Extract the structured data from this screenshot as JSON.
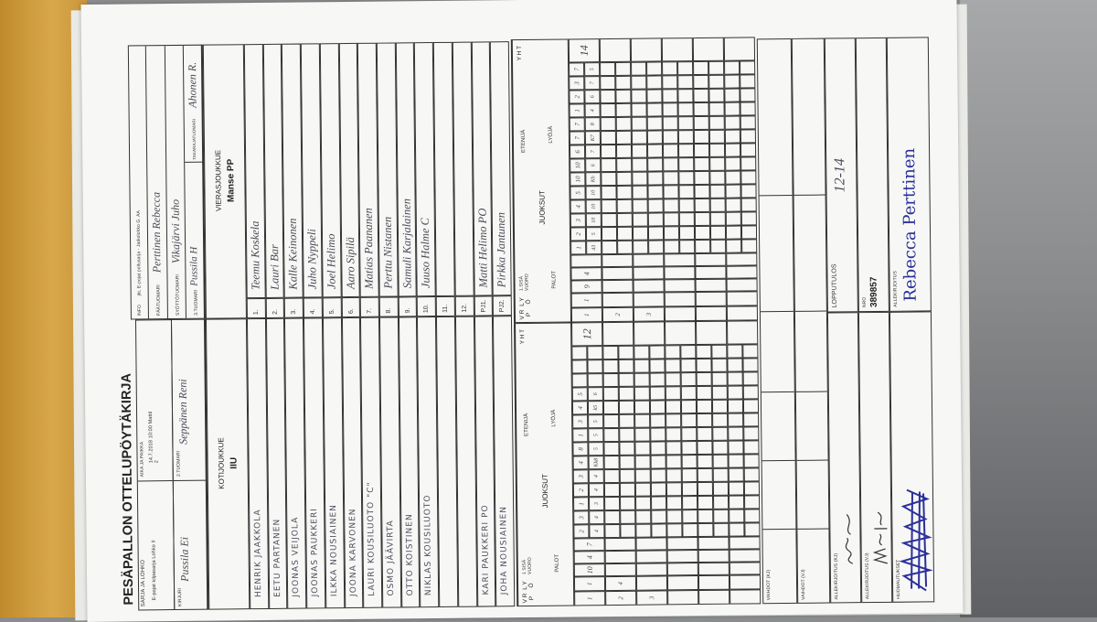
{
  "form": {
    "title": "PESÄPALLON OTTELUPÖYTÄKIRJA",
    "header": {
      "series_label": "SARJA JA LOHKO",
      "series_value": "E-pojat kilpasarja Lohko II",
      "time_place_label": "AIKA JA PAIKKA",
      "time_place_value": "14.7.2018 10:00 Mattil 2",
      "scorer_label": "KIRJURI",
      "scorer_value": "Pussila Ei",
      "umpire2_label": "2.TUOMARI",
      "umpire2_value": "Seppänen Reni",
      "info_label": "INFO",
      "info_value": "jkt, E-pojat pollusarja - Jatkolohko G. AA",
      "head_umpire_label": "PÄÄTUOMARI",
      "head_umpire_value": "Perttinen Rebecca",
      "pitch_umpire_label": "SYÖTTÖTUOMARI",
      "pitch_umpire_value": "Vikajärvi Juho",
      "umpire3_label": "3.TUOMARI",
      "umpire3_value": "Pussila H",
      "back_umpire_label": "TAKARAJATUOMARI",
      "back_umpire_value": "Ahonen R."
    },
    "home": {
      "label": "KOTIJOUKKUE",
      "name": "IIU",
      "players": [
        "HENRIK JAAKKOLA",
        "EETU PARTANEN",
        "JOONAS VEIJOLA",
        "JOONAS PAUKKERI",
        "ILKKA NOUSIAINEN",
        "JOONA KARVONEN",
        "LAURI KOUSILUOTO \"C\"",
        "OSMO JÄÄVIRTA",
        "OTTO KOISTINEN",
        "NIKLAS KOUSILUOTO",
        "",
        "",
        "KARI PAUKKERI PO",
        "JOHA NOUSIAINEN"
      ]
    },
    "away": {
      "label": "VIERASJOUKKUE",
      "name": "Manse PP",
      "players": [
        "Teemu Koskela",
        "Lauri Bar",
        "Kalle Keinonen",
        "Juho Nyppeli",
        "Joel Helimo",
        "Aaro Sipilä",
        "Matias Paananen",
        "Perttu Nistanen",
        "Samuli Karjalainen",
        "Juuso Halme C",
        "",
        "",
        "Matti Helimo PO",
        "Pirkka Jantunen"
      ]
    },
    "row_numbers": [
      "1.",
      "2.",
      "3.",
      "4.",
      "5.",
      "6.",
      "7.",
      "8.",
      "9.",
      "10.",
      "11.",
      "12.",
      "PJ1.",
      "PJ2."
    ],
    "score_header": {
      "vrp": "V R P",
      "lyo": "L Y Ö",
      "home_inning": "1 SISÄ VUORO",
      "away_inning": "1.SISÄ VUORO",
      "palot": "PALOT",
      "juoksut": "JUOKSUT",
      "etenija": "ETENIJÄ",
      "lyoja": "LYÖJÄ",
      "yht": "Y H T"
    },
    "home_innings": [
      {
        "no": "1",
        "lyo": "1",
        "palot": [
          "10",
          "4",
          "7"
        ],
        "etenija": [
          "2",
          "3",
          "1",
          "2",
          "3",
          "4",
          "8",
          "1",
          "3",
          "4",
          "5"
        ],
        "lyoja": [
          "4",
          "4",
          "3",
          "4",
          "4",
          "Kk8",
          "5",
          "5",
          "5",
          "k5",
          "6"
        ],
        "total": "12"
      },
      {
        "no": "2",
        "lyo": "4",
        "palot": [],
        "etenija": [],
        "lyoja": [],
        "total": ""
      },
      {
        "no": "3",
        "lyo": "",
        "palot": [],
        "etenija": [],
        "lyoja": [],
        "total": ""
      }
    ],
    "away_innings": [
      {
        "no": "1",
        "lyo": "1",
        "palot": [
          "9",
          "4"
        ],
        "etenija": [
          "1",
          "2",
          "3",
          "4",
          "5",
          "10",
          "10",
          "6",
          "7",
          "7",
          "1",
          "2",
          "3",
          "7"
        ],
        "lyoja": [
          "43",
          "5",
          "10",
          "10",
          "10",
          "Kh",
          "6",
          "7",
          "K7",
          "8",
          "4",
          "6",
          "7",
          "5"
        ],
        "total": "14"
      },
      {
        "no": "2",
        "lyo": "",
        "palot": [],
        "etenija": [],
        "lyoja": [],
        "total": ""
      },
      {
        "no": "3",
        "lyo": "",
        "palot": [],
        "etenija": [],
        "lyoja": [],
        "total": ""
      }
    ],
    "footer": {
      "subs_home_label": "VAIHDOT (KJ)",
      "subs_away_label": "VAIHDOT (VJ)",
      "sign_home_label": "ALLEKIRJOITUS (KJ)",
      "sign_away_label": "ALLEKIRJOITUS (VJ)",
      "remarks_label": "HUOMAUTUKSET",
      "result_label": "LOPPUTULOS",
      "result_value": "12-14",
      "nro_label": "NRO",
      "nro_value": "389857",
      "signature_label": "ALLEKIRJOITUS",
      "signature_value": "Rebecca Perttinen"
    }
  },
  "colors": {
    "ink_blue": "#2a2f9a",
    "pencil": "#4a4a55",
    "table_wood": "#d9a84a"
  }
}
